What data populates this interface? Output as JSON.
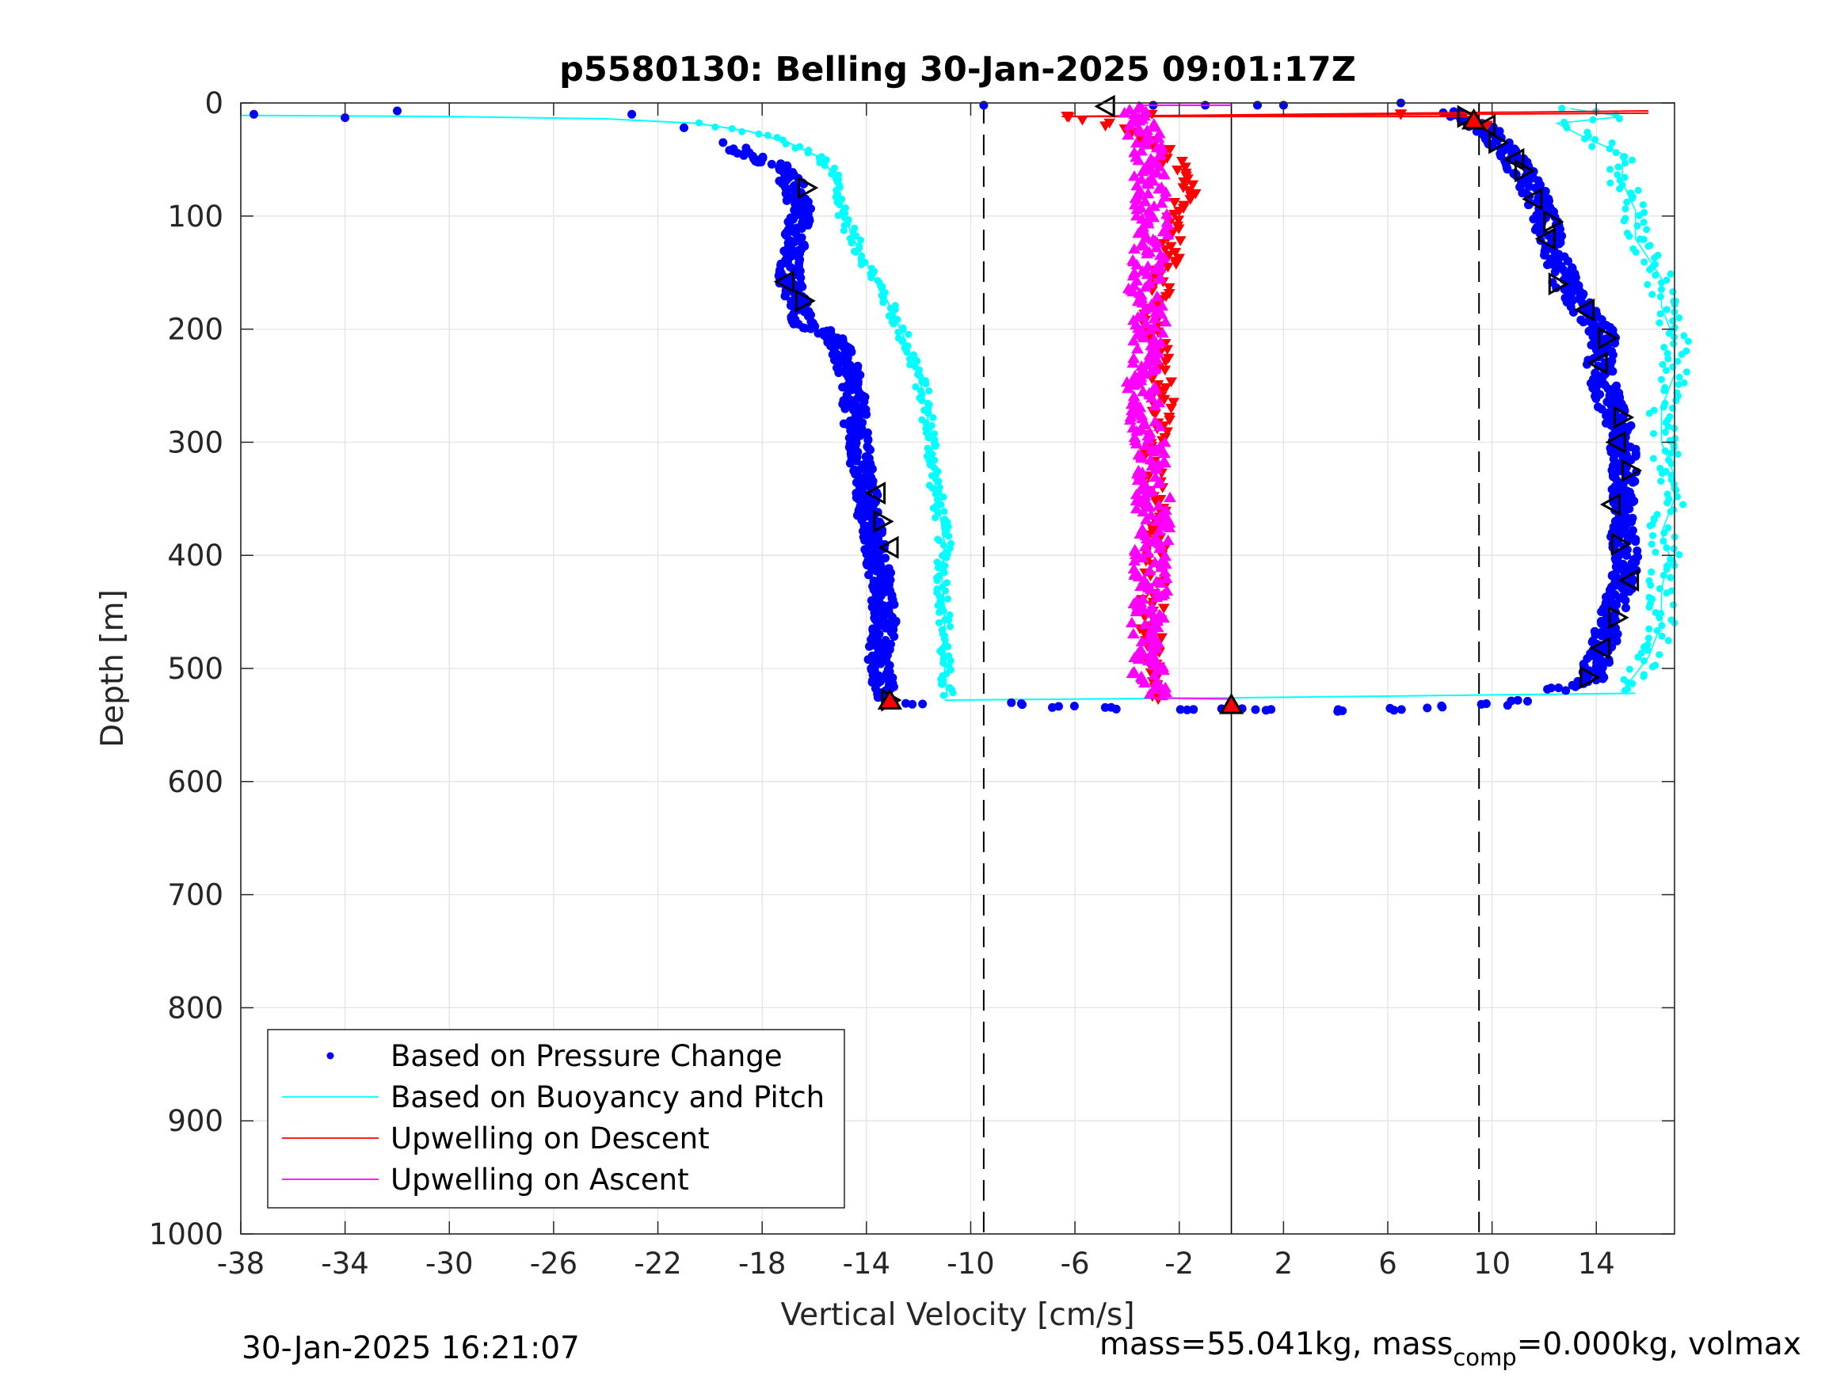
{
  "chart_data": {
    "type": "scatter",
    "title": "p5580130: Belling 30-Jan-2025 09:01:17Z",
    "xlabel": "Vertical Velocity [cm/s]",
    "ylabel": "Depth [m]",
    "xlim": [
      -38,
      17
    ],
    "ylim": [
      0,
      1000
    ],
    "y_reversed": true,
    "grid": true,
    "x_ticks": [
      "-38",
      "-34",
      "-30",
      "-26",
      "-22",
      "-18",
      "-14",
      "-10",
      "-6",
      "-2",
      "2",
      "6",
      "10",
      "14"
    ],
    "x_tick_values": [
      -38,
      -34,
      -30,
      -26,
      -22,
      -18,
      -14,
      -10,
      -6,
      -2,
      2,
      6,
      10,
      14
    ],
    "y_ticks": [
      "0",
      "100",
      "200",
      "300",
      "400",
      "500",
      "600",
      "700",
      "800",
      "900",
      "1000"
    ],
    "y_tick_values": [
      0,
      100,
      200,
      300,
      400,
      500,
      600,
      700,
      800,
      900,
      1000
    ],
    "legend_position": "bottom-left",
    "reference_lines": {
      "dashed_x": [
        -9.5,
        9.5
      ],
      "solid_x": [
        0
      ],
      "max_depth": 533
    },
    "series": [
      {
        "name": "Based on Pressure Change",
        "color": "#0000ff",
        "marker": "dot",
        "dive_profile": [
          [
            -37.5,
            10
          ],
          [
            -34,
            13
          ],
          [
            -32,
            7
          ],
          [
            -23,
            10
          ],
          [
            -21,
            22
          ],
          [
            -19.5,
            35
          ],
          [
            -18.5,
            45
          ],
          [
            -17.5,
            55
          ],
          [
            -16.8,
            72
          ],
          [
            -16.5,
            95
          ],
          [
            -16.7,
            120
          ],
          [
            -17,
            140
          ],
          [
            -16.9,
            160
          ],
          [
            -16.6,
            180
          ],
          [
            -16.4,
            195
          ],
          [
            -15.3,
            205
          ],
          [
            -14.8,
            230
          ],
          [
            -14.5,
            260
          ],
          [
            -14.4,
            290
          ],
          [
            -14.2,
            320
          ],
          [
            -14,
            345
          ],
          [
            -13.9,
            370
          ],
          [
            -13.6,
            400
          ],
          [
            -13.4,
            430
          ],
          [
            -13.3,
            460
          ],
          [
            -13.5,
            490
          ],
          [
            -13.4,
            515
          ],
          [
            -13.1,
            528
          ]
        ],
        "climb_profile": [
          [
            8.5,
            8
          ],
          [
            9.2,
            15
          ],
          [
            10,
            28
          ],
          [
            10.7,
            45
          ],
          [
            11.4,
            70
          ],
          [
            11.9,
            95
          ],
          [
            12.2,
            115
          ],
          [
            12.5,
            140
          ],
          [
            12.9,
            165
          ],
          [
            13.6,
            185
          ],
          [
            14.3,
            205
          ],
          [
            14.1,
            235
          ],
          [
            14.5,
            265
          ],
          [
            14.9,
            290
          ],
          [
            15.1,
            315
          ],
          [
            15.0,
            345
          ],
          [
            14.9,
            370
          ],
          [
            15.2,
            400
          ],
          [
            14.9,
            430
          ],
          [
            14.5,
            460
          ],
          [
            14.1,
            490
          ],
          [
            13.8,
            510
          ],
          [
            12.3,
            520
          ]
        ],
        "bottom_turn": [
          [
            -12,
            531
          ],
          [
            -8,
            531
          ],
          [
            -6.5,
            534
          ],
          [
            -4.5,
            535
          ],
          [
            -2,
            536
          ],
          [
            0,
            536
          ],
          [
            1,
            537
          ],
          [
            4,
            537
          ],
          [
            6,
            536
          ],
          [
            8,
            534
          ],
          [
            10,
            532
          ],
          [
            11,
            528
          ]
        ]
      },
      {
        "name": "Based on Buoyancy and Pitch",
        "color": "#00ffff",
        "marker": "line+dot",
        "dive_profile": [
          [
            -38,
            11
          ],
          [
            -30,
            12
          ],
          [
            -24,
            14
          ],
          [
            -20.5,
            18
          ],
          [
            -18.5,
            25
          ],
          [
            -17,
            35
          ],
          [
            -15.8,
            48
          ],
          [
            -15.2,
            65
          ],
          [
            -15,
            90
          ],
          [
            -14.5,
            120
          ],
          [
            -13.8,
            150
          ],
          [
            -13.2,
            175
          ],
          [
            -12.6,
            205
          ],
          [
            -12,
            240
          ],
          [
            -11.7,
            270
          ],
          [
            -11.5,
            300
          ],
          [
            -11.4,
            330
          ],
          [
            -11.2,
            360
          ],
          [
            -11,
            390
          ],
          [
            -11.1,
            420
          ],
          [
            -11,
            450
          ],
          [
            -11,
            480
          ],
          [
            -11,
            500
          ],
          [
            -10.9,
            525
          ]
        ],
        "climb_profile": [
          [
            13,
            5
          ],
          [
            15,
            12
          ],
          [
            12.5,
            18
          ],
          [
            13.5,
            30
          ],
          [
            15,
            45
          ],
          [
            15,
            70
          ],
          [
            15.5,
            95
          ],
          [
            15.5,
            120
          ],
          [
            16.5,
            155
          ],
          [
            16.5,
            180
          ],
          [
            17,
            210
          ],
          [
            17,
            240
          ],
          [
            16.5,
            270
          ],
          [
            16.5,
            300
          ],
          [
            17,
            330
          ],
          [
            17,
            350
          ],
          [
            16.5,
            380
          ],
          [
            16.8,
            400
          ],
          [
            16.5,
            430
          ],
          [
            16.5,
            460
          ],
          [
            16,
            490
          ],
          [
            15.5,
            505
          ],
          [
            15,
            520
          ]
        ],
        "bottom_turn": [
          [
            -11,
            528
          ],
          [
            0,
            526
          ],
          [
            15.5,
            522
          ]
        ]
      },
      {
        "name": "Upwelling on Descent",
        "color": "#ff0000",
        "marker": "triangle-down",
        "profile": [
          [
            -6,
            12
          ],
          [
            -3.5,
            25
          ],
          [
            -2.5,
            45
          ],
          [
            -2,
            65
          ],
          [
            -1.8,
            80
          ],
          [
            -2,
            100
          ],
          [
            -2.3,
            125
          ],
          [
            -2.6,
            150
          ],
          [
            -2.9,
            175
          ],
          [
            -3,
            200
          ],
          [
            -2.8,
            230
          ],
          [
            -2.6,
            260
          ],
          [
            -2.8,
            290
          ],
          [
            -3,
            320
          ],
          [
            -3,
            350
          ],
          [
            -2.9,
            380
          ],
          [
            -2.9,
            410
          ],
          [
            -3,
            440
          ],
          [
            -3.1,
            470
          ],
          [
            -3.1,
            500
          ],
          [
            -3,
            525
          ]
        ],
        "surface_feature": [
          [
            -6.5,
            12
          ],
          [
            16,
            7
          ]
        ]
      },
      {
        "name": "Upwelling on Ascent",
        "color": "#ff00ff",
        "marker": "triangle-up",
        "profile": [
          [
            -3.5,
            5
          ],
          [
            -3.4,
            25
          ],
          [
            -3.2,
            50
          ],
          [
            -3.1,
            80
          ],
          [
            -3,
            110
          ],
          [
            -3.2,
            140
          ],
          [
            -3.4,
            160
          ],
          [
            -3.1,
            190
          ],
          [
            -3.2,
            220
          ],
          [
            -3.4,
            250
          ],
          [
            -3.3,
            280
          ],
          [
            -3.1,
            310
          ],
          [
            -3,
            340
          ],
          [
            -3,
            370
          ],
          [
            -3.1,
            400
          ],
          [
            -3.1,
            430
          ],
          [
            -3.2,
            460
          ],
          [
            -3.2,
            490
          ],
          [
            -3.1,
            520
          ]
        ]
      }
    ],
    "markers": {
      "dive_turns": [
        [
          -16.3,
          75
        ],
        [
          -17.1,
          158
        ],
        [
          -16.4,
          175
        ],
        [
          -13.6,
          345
        ],
        [
          -13.4,
          370
        ],
        [
          -13.1,
          393
        ],
        [
          -13.1,
          528
        ]
      ],
      "climb_turns": [
        [
          -4.8,
          3
        ],
        [
          9,
          12
        ],
        [
          9.8,
          20
        ],
        [
          10.2,
          35
        ],
        [
          10.9,
          50
        ],
        [
          11.2,
          60
        ],
        [
          11.6,
          85
        ],
        [
          12.3,
          105
        ],
        [
          12.1,
          120
        ],
        [
          12.5,
          160
        ],
        [
          13.6,
          183
        ],
        [
          14.4,
          208
        ],
        [
          14.1,
          230
        ],
        [
          15,
          278
        ],
        [
          14.8,
          300
        ],
        [
          15.3,
          325
        ],
        [
          14.6,
          355
        ],
        [
          14.9,
          390
        ],
        [
          15.3,
          422
        ],
        [
          14.8,
          455
        ],
        [
          14.2,
          482
        ],
        [
          13.7,
          508
        ]
      ],
      "red_up_triangles": [
        [
          9.3,
          15
        ],
        [
          0,
          532
        ],
        [
          -13.1,
          528
        ]
      ]
    }
  },
  "footer": {
    "timestamp": "30-Jan-2025 16:21:07",
    "mass_text_pre": "mass=55.041kg, mass",
    "mass_sub": "comp",
    "mass_text_post": "=0.000kg, volmax"
  }
}
